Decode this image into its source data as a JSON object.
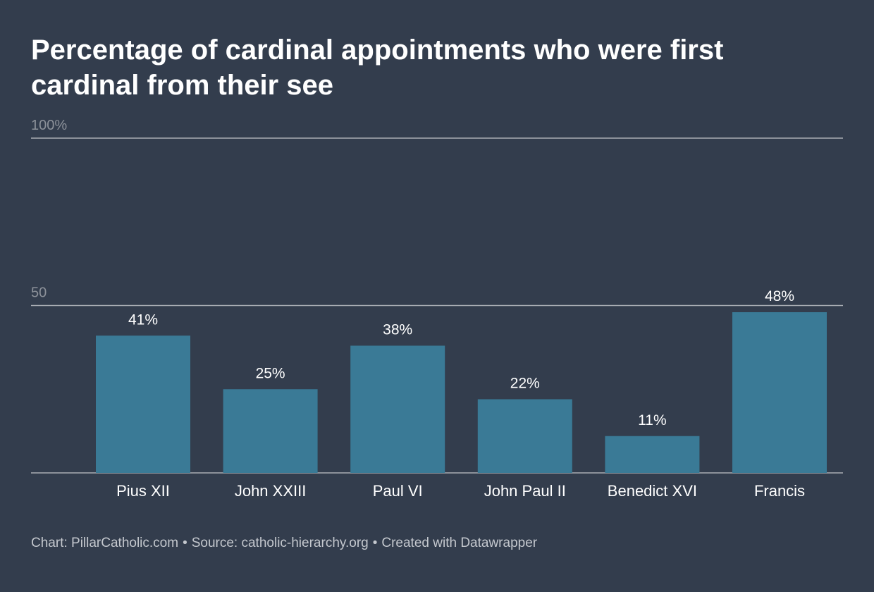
{
  "title": "Percentage of cardinal appointments who were first cardinal from their see",
  "footer": {
    "chart_credit": "Chart: PillarCatholic.com",
    "source": "Source: catholic-hierarchy.org",
    "created_with": "Created with Datawrapper",
    "separator": "•"
  },
  "colors": {
    "background": "#333d4d",
    "bar": "#3a7a96",
    "gridline": "#a9adb4",
    "tick_label": "#8d929a",
    "text": "#ffffff"
  },
  "chart_data": {
    "type": "bar",
    "categories": [
      "Pius XII",
      "John XXIII",
      "Paul VI",
      "John Paul II",
      "Benedict XVI",
      "Francis"
    ],
    "values": [
      41,
      25,
      38,
      22,
      11,
      48
    ],
    "value_labels": [
      "41%",
      "25%",
      "38%",
      "22%",
      "11%",
      "48%"
    ],
    "y_ticks": [
      {
        "value": 100,
        "label": "100%"
      },
      {
        "value": 50,
        "label": "50"
      }
    ],
    "ylim": [
      0,
      100
    ],
    "grid": true,
    "legend": "none"
  }
}
